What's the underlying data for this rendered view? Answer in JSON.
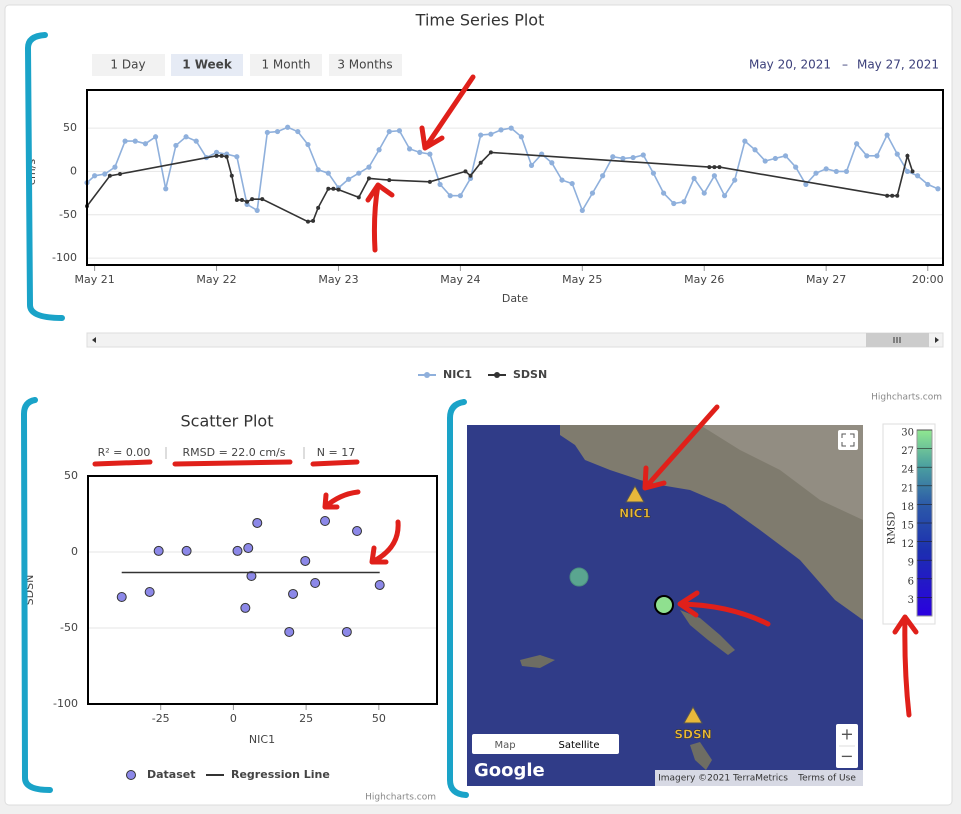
{
  "chart_data": [
    {
      "type": "line",
      "title": "Time Series Plot",
      "ylabel": "cm/s",
      "xlabel": "Date",
      "xlim": [
        "2021-05-20T22:30",
        "2021-05-27T23:00"
      ],
      "xticks": [
        {
          "value": "2021-05-21T00:00",
          "label": "May 21"
        },
        {
          "value": "2021-05-22T00:00",
          "label": "May 22"
        },
        {
          "value": "2021-05-23T00:00",
          "label": "May 23"
        },
        {
          "value": "2021-05-24T00:00",
          "label": "May 24"
        },
        {
          "value": "2021-05-25T00:00",
          "label": "May 25"
        },
        {
          "value": "2021-05-26T00:00",
          "label": "May 26"
        },
        {
          "value": "2021-05-27T00:00",
          "label": "May 27"
        },
        {
          "value": "2021-05-27T20:00",
          "label": "20:00"
        }
      ],
      "ylim": [
        -108,
        94
      ],
      "yticks": [
        -100,
        -50,
        0,
        50
      ],
      "grid": true,
      "legend": "bottom",
      "credits": "Highcharts.com",
      "series": [
        {
          "name": "NIC1",
          "color": "#8fb0dc",
          "x": [
            "2021-05-20T22:30",
            "2021-05-21T00:00",
            "2021-05-21T02:00",
            "2021-05-21T04:00",
            "2021-05-21T06:00",
            "2021-05-21T08:00",
            "2021-05-21T10:00",
            "2021-05-21T12:00",
            "2021-05-21T14:00",
            "2021-05-21T16:00",
            "2021-05-21T18:00",
            "2021-05-21T20:00",
            "2021-05-21T22:00",
            "2021-05-22T00:00",
            "2021-05-22T02:00",
            "2021-05-22T04:00",
            "2021-05-22T06:00",
            "2021-05-22T08:00",
            "2021-05-22T10:00",
            "2021-05-22T12:00",
            "2021-05-22T14:00",
            "2021-05-22T16:00",
            "2021-05-22T18:00",
            "2021-05-22T20:00",
            "2021-05-22T22:00",
            "2021-05-23T00:00",
            "2021-05-23T02:00",
            "2021-05-23T04:00",
            "2021-05-23T06:00",
            "2021-05-23T08:00",
            "2021-05-23T10:00",
            "2021-05-23T12:00",
            "2021-05-23T14:00",
            "2021-05-23T16:00",
            "2021-05-23T18:00",
            "2021-05-23T20:00",
            "2021-05-23T22:00",
            "2021-05-24T00:00",
            "2021-05-24T02:00",
            "2021-05-24T04:00",
            "2021-05-24T06:00",
            "2021-05-24T08:00",
            "2021-05-24T10:00",
            "2021-05-24T12:00",
            "2021-05-24T14:00",
            "2021-05-24T16:00",
            "2021-05-24T18:00",
            "2021-05-24T20:00",
            "2021-05-24T22:00",
            "2021-05-25T00:00",
            "2021-05-25T02:00",
            "2021-05-25T04:00",
            "2021-05-25T06:00",
            "2021-05-25T08:00",
            "2021-05-25T10:00",
            "2021-05-25T12:00",
            "2021-05-25T14:00",
            "2021-05-25T16:00",
            "2021-05-25T18:00",
            "2021-05-25T20:00",
            "2021-05-25T22:00",
            "2021-05-26T00:00",
            "2021-05-26T02:00",
            "2021-05-26T04:00",
            "2021-05-26T06:00",
            "2021-05-26T08:00",
            "2021-05-26T10:00",
            "2021-05-26T12:00",
            "2021-05-26T14:00",
            "2021-05-26T16:00",
            "2021-05-26T18:00",
            "2021-05-26T20:00",
            "2021-05-26T22:00",
            "2021-05-27T00:00",
            "2021-05-27T02:00",
            "2021-05-27T04:00",
            "2021-05-27T06:00",
            "2021-05-27T08:00",
            "2021-05-27T10:00",
            "2021-05-27T12:00",
            "2021-05-27T14:00",
            "2021-05-27T16:00",
            "2021-05-27T18:00",
            "2021-05-27T20:00",
            "2021-05-27T22:00"
          ],
          "values": [
            -13,
            -5,
            -3,
            5,
            35,
            35,
            32,
            40,
            -20,
            30,
            40,
            35,
            16,
            22,
            20,
            17,
            -38,
            -45,
            45,
            46,
            51,
            46,
            31,
            2,
            -2,
            -19,
            -9,
            -2,
            5,
            25,
            46,
            47,
            26,
            22,
            20,
            -15,
            -28,
            -28,
            -8,
            42,
            43,
            48,
            50,
            40,
            7,
            20,
            10,
            -10,
            -14,
            -45,
            -25,
            -5,
            17,
            15,
            16,
            19,
            -2,
            -25,
            -37,
            -35,
            -8,
            -25,
            -5,
            -28,
            -10,
            35,
            25,
            12,
            15,
            18,
            5,
            -15,
            -2,
            3,
            0,
            0,
            32,
            18,
            18,
            42,
            20,
            0,
            -5,
            -15,
            -20
          ]
        },
        {
          "name": "SDSN",
          "color": "#333333",
          "x": [
            "2021-05-20T22:30",
            "2021-05-21T03:00",
            "2021-05-21T05:00",
            "2021-05-22T00:00",
            "2021-05-22T01:00",
            "2021-05-22T02:00",
            "2021-05-22T03:00",
            "2021-05-22T04:00",
            "2021-05-22T05:00",
            "2021-05-22T06:00",
            "2021-05-22T07:00",
            "2021-05-22T09:00",
            "2021-05-22T18:00",
            "2021-05-22T19:00",
            "2021-05-22T20:00",
            "2021-05-22T22:00",
            "2021-05-22T23:00",
            "2021-05-23T00:00",
            "2021-05-23T04:00",
            "2021-05-23T06:00",
            "2021-05-23T10:00",
            "2021-05-23T18:00",
            "2021-05-24T01:00",
            "2021-05-24T02:00",
            "2021-05-24T04:00",
            "2021-05-24T06:00",
            "2021-05-26T01:00",
            "2021-05-26T02:00",
            "2021-05-26T03:00",
            "2021-05-27T12:00",
            "2021-05-27T13:00",
            "2021-05-27T14:00",
            "2021-05-27T16:00",
            "2021-05-27T17:00"
          ],
          "values": [
            -40,
            -5,
            -3,
            18,
            18,
            17,
            -5,
            -33,
            -33,
            -35,
            -32,
            -32,
            -58,
            -57,
            -42,
            -20,
            -20,
            -21,
            -30,
            -8,
            -10,
            -12,
            0,
            -5,
            10,
            22,
            5,
            5,
            5,
            -28,
            -28,
            -28,
            18,
            0
          ]
        }
      ]
    },
    {
      "type": "scatter",
      "title": "Scatter Plot",
      "annotations": [
        "R² = 0.00",
        "RMSD = 22.0 cm/s",
        "N = 17"
      ],
      "xlabel": "NIC1",
      "ylabel": "SDSN",
      "xlim": [
        -50,
        70
      ],
      "xticks": [
        -25,
        0,
        25,
        50
      ],
      "ylim": [
        -100,
        50
      ],
      "yticks": [
        -100,
        -50,
        0,
        50
      ],
      "grid": true,
      "legend": "bottom",
      "credits": "Highcharts.com",
      "series": [
        {
          "name": "Dataset",
          "color": "#8c88e8",
          "x": [
            -38.4,
            -28.8,
            -25.7,
            -16.1,
            1.4,
            5.1,
            6.2,
            8.2,
            4.1,
            20.5,
            24.7,
            28.1,
            19.2,
            31.5,
            42.5,
            39.0,
            50.3
          ],
          "values": [
            -29.6,
            -26.3,
            0.7,
            0.7,
            0.7,
            2.6,
            -15.8,
            19.1,
            -36.8,
            -27.6,
            -5.9,
            -20.4,
            -52.6,
            20.4,
            13.8,
            -52.6,
            -21.7
          ]
        },
        {
          "name": "Regression Line",
          "type": "line",
          "color": "#333333",
          "x": [
            -38.4,
            50.3
          ],
          "values": [
            -13.5,
            -13.5
          ]
        }
      ]
    }
  ],
  "ui": {
    "buttons": [
      "1 Day",
      "1 Week",
      "1 Month",
      "3 Months"
    ],
    "date_from": "May 20, 2021",
    "date_sep": "–",
    "date_to": "May 27, 2021",
    "map": {
      "stations": [
        "NIC1",
        "SDSN"
      ],
      "type_buttons": [
        "Map",
        "Satellite"
      ],
      "logo": "Google",
      "attribution": "Imagery ©2021 TerraMetrics",
      "terms": "Terms of Use",
      "zoom": [
        "+",
        "−"
      ]
    },
    "colorbar": {
      "title": "RMSD",
      "lim": [
        0,
        30
      ],
      "ticks": [
        3,
        6,
        9,
        12,
        15,
        18,
        21,
        24,
        27,
        30
      ]
    }
  }
}
